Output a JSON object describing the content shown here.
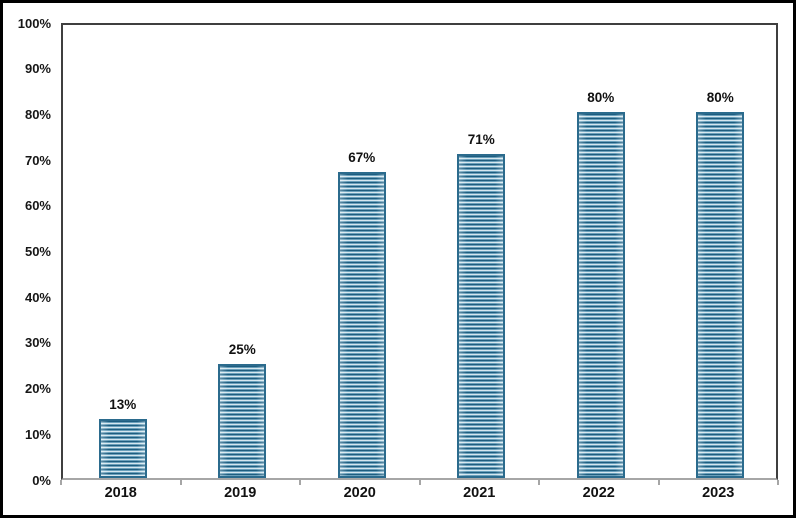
{
  "chart_data": {
    "type": "bar",
    "title": "",
    "categories": [
      "2018",
      "2019",
      "2020",
      "2021",
      "2022",
      "2023"
    ],
    "values": [
      13,
      25,
      67,
      71,
      80,
      80
    ],
    "data_labels": [
      "13%",
      "25%",
      "67%",
      "71%",
      "80%",
      "80%"
    ],
    "y_tick_labels": [
      "0%",
      "10%",
      "20%",
      "30%",
      "40%",
      "50%",
      "60%",
      "70%",
      "80%",
      "90%",
      "100%"
    ],
    "y_tick_values": [
      0,
      10,
      20,
      30,
      40,
      50,
      60,
      70,
      80,
      90,
      100
    ],
    "ylim": [
      0,
      100
    ],
    "grid": false,
    "legend": "none",
    "bar_pattern": "horizontal-stripes",
    "colors": {
      "bar_stripe_dark": "#1e5d7f",
      "bar_stripe_mid": "#6aa0bb",
      "bar_stripe_light": "#d6e7ef",
      "bar_border": "#2b6b8d",
      "plot_border": "#3f3f3f",
      "axis_line": "#a6a6a6",
      "label_text": "#111111",
      "frame_border": "#000000",
      "background": "#ffffff"
    }
  }
}
